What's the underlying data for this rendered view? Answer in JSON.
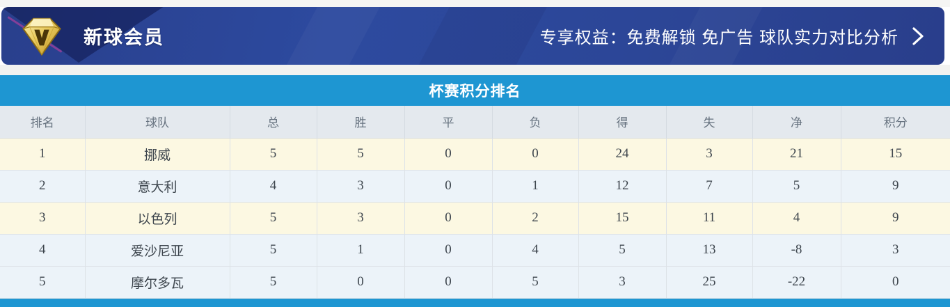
{
  "banner": {
    "title": "新球会员",
    "benefits": "专享权益：免费解锁 免广告 球队实力对比分析",
    "icons": {
      "diamond": "vip-diamond-icon",
      "chevron": "chevron-right-icon"
    }
  },
  "table": {
    "title": "杯赛积分排名",
    "columns": [
      "排名",
      "球队",
      "总",
      "胜",
      "平",
      "负",
      "得",
      "失",
      "净",
      "积分"
    ],
    "rows": [
      {
        "rank": "1",
        "team": "挪威",
        "total": "5",
        "win": "5",
        "draw": "0",
        "loss": "0",
        "gf": "24",
        "ga": "3",
        "gd": "21",
        "pts": "15"
      },
      {
        "rank": "2",
        "team": "意大利",
        "total": "4",
        "win": "3",
        "draw": "0",
        "loss": "1",
        "gf": "12",
        "ga": "7",
        "gd": "5",
        "pts": "9"
      },
      {
        "rank": "3",
        "team": "以色列",
        "total": "5",
        "win": "3",
        "draw": "0",
        "loss": "2",
        "gf": "15",
        "ga": "11",
        "gd": "4",
        "pts": "9"
      },
      {
        "rank": "4",
        "team": "爱沙尼亚",
        "total": "5",
        "win": "1",
        "draw": "0",
        "loss": "4",
        "gf": "5",
        "ga": "13",
        "gd": "-8",
        "pts": "3"
      },
      {
        "rank": "5",
        "team": "摩尔多瓦",
        "total": "5",
        "win": "0",
        "draw": "0",
        "loss": "5",
        "gf": "3",
        "ga": "25",
        "gd": "-22",
        "pts": "0"
      }
    ]
  },
  "colors": {
    "banner_blue": "#2c4697",
    "accent_blue": "#1e96d2",
    "row_cream": "#fcf8e2",
    "row_blue": "#ecf3f9",
    "team_green": "#55aa66",
    "diamond_gold": "#e3c148"
  }
}
